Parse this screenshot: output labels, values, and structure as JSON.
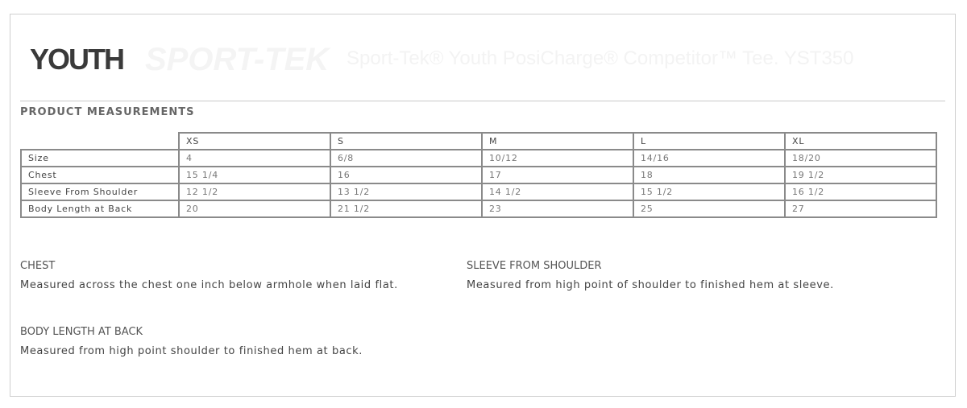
{
  "header": {
    "youth_label": "YOUTH",
    "logo_text": "SPORT-TEK",
    "product_title": "Sport-Tek® Youth PosiCharge® Competitor™ Tee. YST350"
  },
  "section_title": "PRODUCT MEASUREMENTS",
  "table": {
    "columns": [
      "XS",
      "S",
      "M",
      "L",
      "XL"
    ],
    "rows": [
      {
        "label": "Size",
        "values": [
          "4",
          "6/8",
          "10/12",
          "14/16",
          "18/20"
        ]
      },
      {
        "label": "Chest",
        "values": [
          "15 1/4",
          "16",
          "17",
          "18",
          "19 1/2"
        ]
      },
      {
        "label": "Sleeve From Shoulder",
        "values": [
          "12 1/2",
          "13 1/2",
          "14 1/2",
          "15 1/2",
          "16 1/2"
        ]
      },
      {
        "label": "Body Length at Back",
        "values": [
          "20",
          "21 1/2",
          "23",
          "25",
          "27"
        ]
      }
    ]
  },
  "notes": [
    {
      "title": "CHEST",
      "text": "Measured across the chest one inch below armhole when laid flat."
    },
    {
      "title": "SLEEVE FROM SHOULDER",
      "text": "Measured from high point of shoulder to finished hem at sleeve."
    },
    {
      "title": "BODY LENGTH AT BACK",
      "text": "Measured from high point shoulder to finished hem at back."
    }
  ]
}
